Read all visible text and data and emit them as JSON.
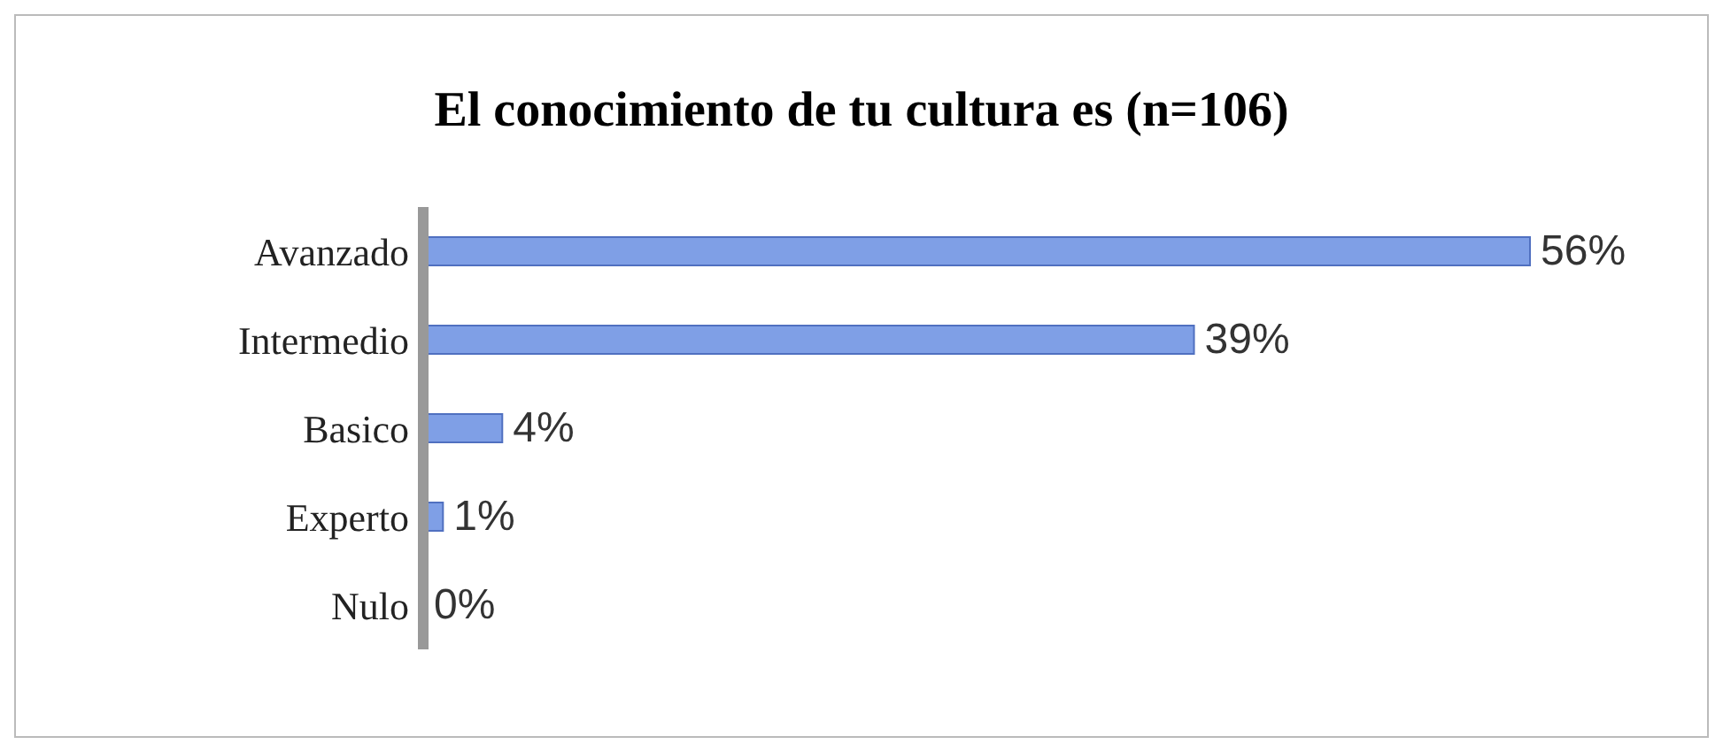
{
  "chart_data": {
    "type": "bar",
    "orientation": "horizontal",
    "title": "El conocimiento de tu cultura es (n=106)",
    "categories": [
      "Avanzado",
      "Intermedio",
      "Basico",
      "Experto",
      "Nulo"
    ],
    "values": [
      56,
      39,
      4,
      1,
      0
    ],
    "value_labels": [
      "56%",
      "39%",
      "4%",
      "1%",
      "0%"
    ],
    "color": "#7f9fe6",
    "grid": false,
    "legend": false
  }
}
